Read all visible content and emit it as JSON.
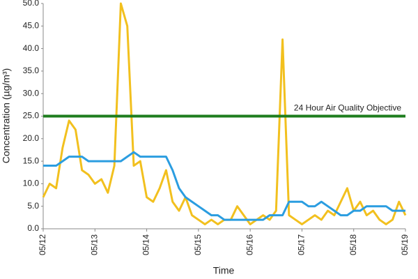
{
  "chart_data": {
    "type": "line",
    "ylabel": "Concentration (µg/m³)",
    "xlabel": "Time",
    "categories": [
      "05/12",
      null,
      null,
      null,
      null,
      null,
      null,
      null,
      "05/13",
      null,
      null,
      null,
      null,
      null,
      null,
      null,
      "05/14",
      null,
      null,
      null,
      null,
      null,
      null,
      null,
      "05/15",
      null,
      null,
      null,
      null,
      null,
      null,
      null,
      "05/16",
      null,
      null,
      null,
      null,
      null,
      null,
      null,
      "05/17",
      null,
      null,
      null,
      null,
      null,
      null,
      null,
      "05/18",
      null,
      null,
      null,
      null,
      null,
      null,
      null,
      "05/19"
    ],
    "series": [
      {
        "color": "#f2c01e",
        "values": [
          7,
          10,
          9,
          18,
          24,
          22,
          13,
          12,
          10,
          11,
          8,
          14,
          50,
          45,
          14,
          15,
          7,
          6,
          9,
          13,
          6,
          4,
          7,
          3,
          2,
          1,
          2,
          1,
          2,
          2,
          5,
          3,
          1,
          2,
          3,
          2,
          4,
          42,
          3,
          2,
          1,
          2,
          3,
          2,
          4,
          3,
          6,
          9,
          4,
          6,
          3,
          4,
          2,
          1,
          2,
          6,
          3
        ]
      },
      {
        "color": "#2b9de0",
        "values": [
          14,
          14,
          14,
          15,
          16,
          16,
          16,
          15,
          15,
          15,
          15,
          15,
          15,
          16,
          17,
          16,
          16,
          16,
          16,
          16,
          13,
          9,
          7,
          6,
          5,
          4,
          3,
          3,
          2,
          2,
          2,
          2,
          2,
          2,
          2,
          3,
          3,
          3,
          6,
          6,
          6,
          5,
          5,
          6,
          5,
          4,
          3,
          3,
          4,
          4,
          5,
          5,
          5,
          5,
          4,
          4,
          4
        ]
      }
    ],
    "reference_line": {
      "value": 25,
      "label": "24 Hour Air Quality Objective",
      "color": "#1e7d1e"
    },
    "ylim": [
      0,
      50
    ],
    "yticks": [
      {
        "value": 0,
        "label": "0.0"
      },
      {
        "value": 5,
        "label": "5.0"
      },
      {
        "value": 10,
        "label": "10.0"
      },
      {
        "value": 15,
        "label": "15.0"
      },
      {
        "value": 20,
        "label": "20.0"
      },
      {
        "value": 25,
        "label": "25.0"
      },
      {
        "value": 30,
        "label": "30.0"
      },
      {
        "value": 35,
        "label": "35.0"
      },
      {
        "value": 40,
        "label": "40.0"
      },
      {
        "value": 45,
        "label": "45.0"
      },
      {
        "value": 50,
        "label": "50.0"
      }
    ],
    "grid": false
  }
}
